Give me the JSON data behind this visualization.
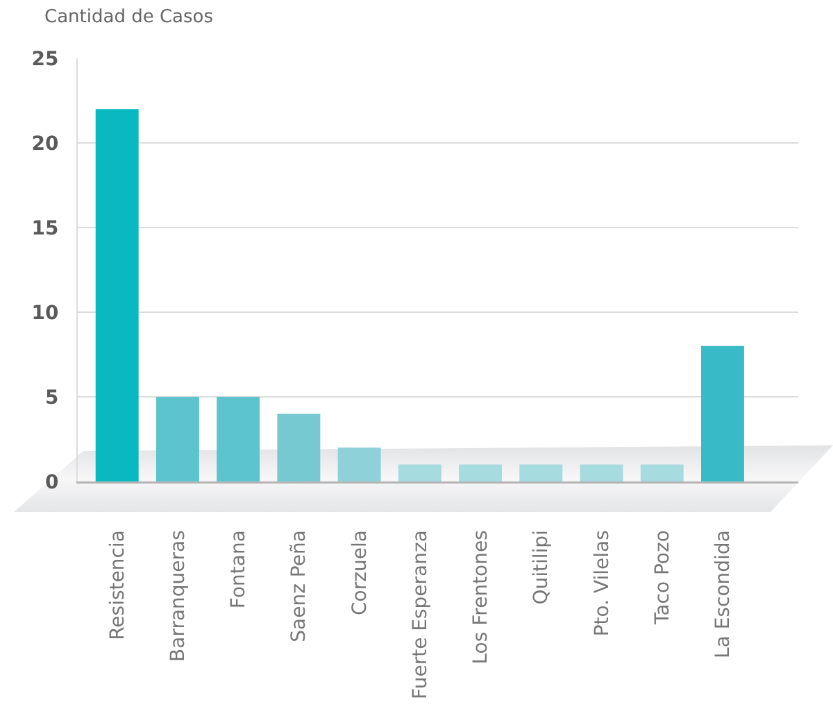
{
  "chart_data": {
    "type": "bar",
    "ylabel": "Cantidad de Casos",
    "categories": [
      "Resistencia",
      "Barranqueras",
      "Fontana",
      "Saenz Peña",
      "Corzuela",
      "Fuerte Esperanza",
      "Los Frentones",
      "Quitilipi",
      "Pto. Vilelas",
      "Taco Pozo",
      "La Escondida"
    ],
    "values": [
      22,
      5,
      5,
      4,
      2,
      1,
      1,
      1,
      1,
      1,
      8
    ],
    "colors": [
      "#0ab8c2",
      "#5cc4cd",
      "#5cc4cd",
      "#76c9d0",
      "#8ed1d8",
      "#a6dbe0",
      "#a6dbe0",
      "#a6dbe0",
      "#a6dbe0",
      "#a6dbe0",
      "#38bbc7"
    ],
    "ylim": [
      0,
      25
    ],
    "yticks": [
      0,
      5,
      10,
      15,
      20,
      25
    ],
    "grid": "y"
  }
}
